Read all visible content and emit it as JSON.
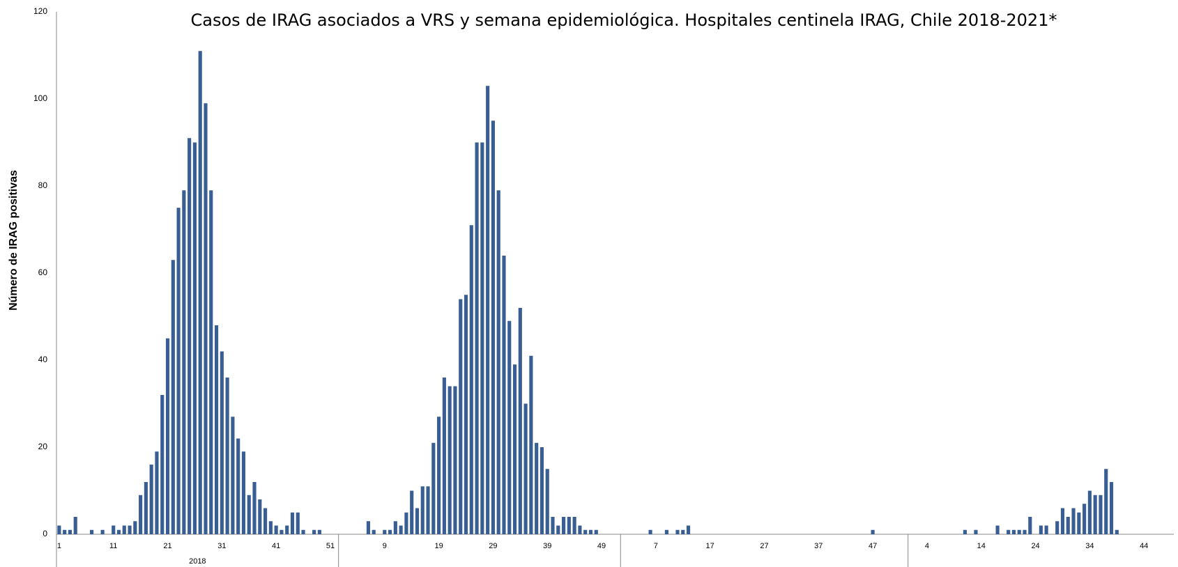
{
  "chart_data": {
    "type": "bar",
    "title": "Casos de IRAG asociados a  VRS y semana epidemiológica.  Hospitales centinela IRAG, Chile 2018-2021*",
    "y_label": "Número de IRAG positivas",
    "color": "#395e94",
    "ylim": [
      0,
      120
    ],
    "yticks": [
      0,
      20,
      40,
      60,
      80,
      100,
      120
    ],
    "grid": false,
    "groups": [
      {
        "label": "2018",
        "weeks": 52
      },
      {
        "label": null,
        "weeks": 52
      },
      {
        "label": null,
        "weeks": 53
      },
      {
        "label": null,
        "weeks": 49
      }
    ],
    "categories": [
      "1",
      null,
      null,
      null,
      null,
      null,
      null,
      null,
      null,
      null,
      "11",
      null,
      null,
      null,
      null,
      null,
      null,
      null,
      null,
      null,
      "21",
      null,
      null,
      null,
      null,
      null,
      null,
      null,
      null,
      null,
      "31",
      null,
      null,
      null,
      null,
      null,
      null,
      null,
      null,
      null,
      "41",
      null,
      null,
      null,
      null,
      null,
      null,
      null,
      null,
      null,
      "51",
      null,
      null,
      null,
      null,
      null,
      null,
      null,
      null,
      null,
      "9",
      null,
      null,
      null,
      null,
      null,
      null,
      null,
      null,
      null,
      "19",
      null,
      null,
      null,
      null,
      null,
      null,
      null,
      null,
      null,
      "29",
      null,
      null,
      null,
      null,
      null,
      null,
      null,
      null,
      null,
      "39",
      null,
      null,
      null,
      null,
      null,
      null,
      null,
      null,
      null,
      "49",
      null,
      null,
      null,
      null,
      null,
      null,
      null,
      null,
      null,
      "7",
      null,
      null,
      null,
      null,
      null,
      null,
      null,
      null,
      null,
      "17",
      null,
      null,
      null,
      null,
      null,
      null,
      null,
      null,
      null,
      "27",
      null,
      null,
      null,
      null,
      null,
      null,
      null,
      null,
      null,
      "37",
      null,
      null,
      null,
      null,
      null,
      null,
      null,
      null,
      null,
      "47",
      null,
      null,
      null,
      null,
      null,
      null,
      null,
      null,
      null,
      "4",
      null,
      null,
      null,
      null,
      null,
      null,
      null,
      null,
      null,
      "14",
      null,
      null,
      null,
      null,
      null,
      null,
      null,
      null,
      null,
      "24",
      null,
      null,
      null,
      null,
      null,
      null,
      null,
      null,
      null,
      "34",
      null,
      null,
      null,
      null,
      null,
      null,
      null,
      null,
      null,
      "44",
      null,
      null,
      null,
      null,
      null
    ],
    "values": [
      2,
      1,
      1,
      4,
      0,
      0,
      1,
      0,
      1,
      0,
      2,
      1,
      2,
      2,
      3,
      9,
      12,
      16,
      19,
      32,
      45,
      63,
      75,
      79,
      91,
      90,
      111,
      99,
      79,
      48,
      42,
      36,
      27,
      22,
      19,
      9,
      12,
      8,
      6,
      3,
      2,
      1,
      2,
      5,
      5,
      1,
      0,
      1,
      1,
      0,
      0,
      0,
      0,
      0,
      0,
      0,
      0,
      3,
      1,
      0,
      1,
      1,
      3,
      2,
      5,
      10,
      6,
      11,
      11,
      21,
      27,
      36,
      34,
      34,
      54,
      55,
      71,
      90,
      90,
      103,
      95,
      79,
      64,
      49,
      39,
      52,
      30,
      41,
      21,
      20,
      15,
      4,
      2,
      4,
      4,
      4,
      2,
      1,
      1,
      1,
      0,
      0,
      0,
      0,
      0,
      0,
      0,
      0,
      0,
      1,
      0,
      0,
      1,
      0,
      1,
      1,
      2,
      0,
      0,
      0,
      0,
      0,
      0,
      0,
      0,
      0,
      0,
      0,
      0,
      0,
      0,
      0,
      0,
      0,
      0,
      0,
      0,
      0,
      0,
      0,
      0,
      0,
      0,
      0,
      0,
      0,
      0,
      0,
      0,
      0,
      1,
      0,
      0,
      0,
      0,
      0,
      0,
      0,
      0,
      0,
      0,
      0,
      0,
      0,
      0,
      0,
      0,
      1,
      0,
      1,
      0,
      0,
      0,
      2,
      0,
      1,
      1,
      1,
      1,
      4,
      0,
      2,
      2,
      0,
      3,
      6,
      4,
      6,
      5,
      7,
      10,
      9,
      9,
      15,
      12,
      1,
      null,
      null,
      null,
      null,
      null,
      null,
      null,
      null,
      null,
      null
    ]
  }
}
